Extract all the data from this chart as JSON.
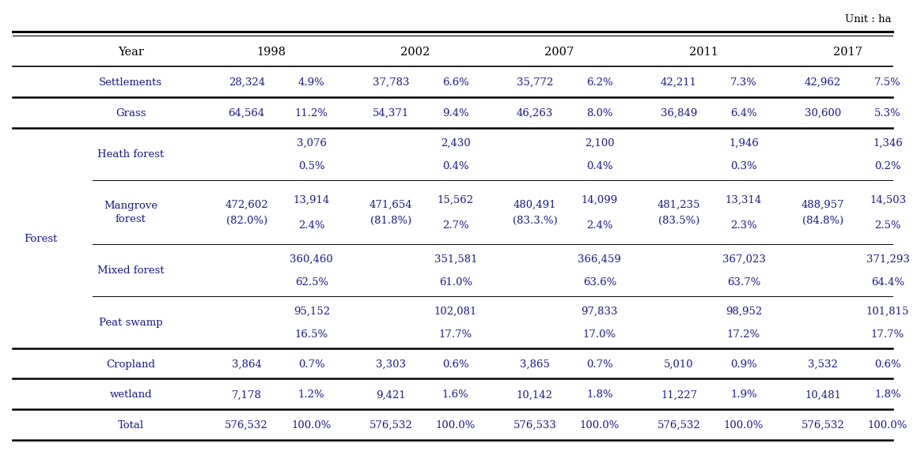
{
  "title_unit": "Unit : ha",
  "years": [
    "1998",
    "2002",
    "2007",
    "2011",
    "2017"
  ],
  "text_color": "#1a1a8c",
  "bg_color": "#ffffff",
  "font_size": 9.5,
  "header_font_size": 10.5,
  "settlements": {
    "vals": [
      "28,324",
      "37,783",
      "35,772",
      "42,211",
      "42,962"
    ],
    "pcts": [
      "4.9%",
      "6.6%",
      "6.2%",
      "7.3%",
      "7.5%"
    ]
  },
  "grass": {
    "vals": [
      "64,564",
      "54,371",
      "46,263",
      "36,849",
      "30,600"
    ],
    "pcts": [
      "11.2%",
      "9.4%",
      "8.0%",
      "6.4%",
      "5.3%"
    ]
  },
  "heath": {
    "nums": [
      "3,076",
      "2,430",
      "2,100",
      "1,946",
      "1,346"
    ],
    "pcts": [
      "0.5%",
      "0.4%",
      "0.4%",
      "0.3%",
      "0.2%"
    ]
  },
  "mangrove": {
    "forest_totals": [
      "472,602",
      "471,654",
      "480,491",
      "481,235",
      "488,957"
    ],
    "forest_pcts": [
      "(82.0%)",
      "(81.8%)",
      "(83.3.%)",
      "(83.5%)",
      "(84.8%)"
    ],
    "nums": [
      "13,914",
      "15,562",
      "14,099",
      "13,314",
      "14,503"
    ],
    "pcts": [
      "2.4%",
      "2.7%",
      "2.4%",
      "2.3%",
      "2.5%"
    ]
  },
  "mixed": {
    "nums": [
      "360,460",
      "351,581",
      "366,459",
      "367,023",
      "371,293"
    ],
    "pcts": [
      "62.5%",
      "61.0%",
      "63.6%",
      "63.7%",
      "64.4%"
    ]
  },
  "peat": {
    "nums": [
      "95,152",
      "102,081",
      "97,833",
      "98,952",
      "101,815"
    ],
    "pcts": [
      "16.5%",
      "17.7%",
      "17.0%",
      "17.2%",
      "17.7%"
    ]
  },
  "cropland": {
    "vals": [
      "3,864",
      "3,303",
      "3,865",
      "5,010",
      "3,532"
    ],
    "pcts": [
      "0.7%",
      "0.6%",
      "0.7%",
      "0.9%",
      "0.6%"
    ]
  },
  "wetland": {
    "vals": [
      "7,178",
      "9,421",
      "10,142",
      "11,227",
      "10,481"
    ],
    "pcts": [
      "1.2%",
      "1.6%",
      "1.8%",
      "1.9%",
      "1.8%"
    ]
  },
  "total": {
    "vals": [
      "576,532",
      "576,532",
      "576,533",
      "576,532",
      "576,532"
    ],
    "pcts": [
      "100.0%",
      "100.0%",
      "100.0%",
      "100.0%",
      "100.0%"
    ]
  }
}
